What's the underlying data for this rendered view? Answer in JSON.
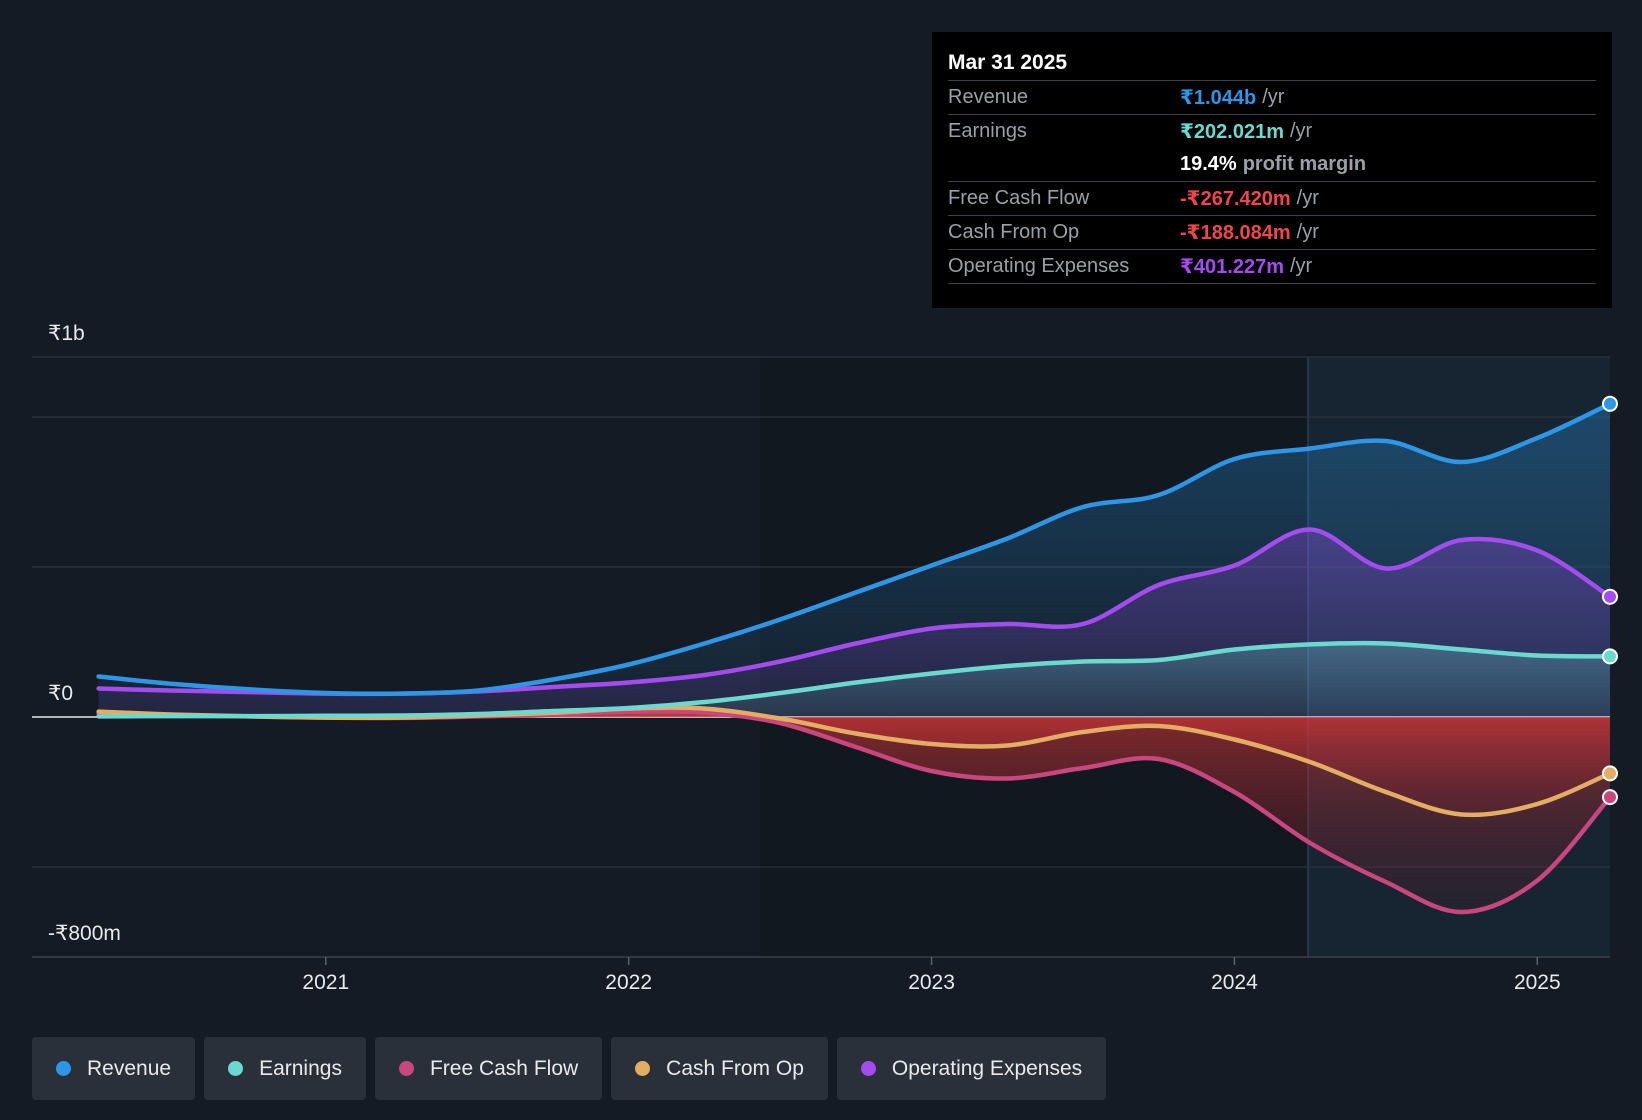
{
  "colors": {
    "revenue": "#2b97e6",
    "earnings": "#6ad9d0",
    "free_cash_flow": "#c9467e",
    "cash_from_op": "#e3ad62",
    "operating_expenses": "#a44cf0",
    "negative": "#f0474d"
  },
  "tooltip": {
    "date": "Mar 31 2025",
    "revenue_label": "Revenue",
    "revenue_value": "₹1.044b",
    "earnings_label": "Earnings",
    "earnings_value": "₹202.021m",
    "margin_pct": "19.4%",
    "margin_text": "profit margin",
    "fcf_label": "Free Cash Flow",
    "fcf_value": "-₹267.420m",
    "cfo_label": "Cash From Op",
    "cfo_value": "-₹188.084m",
    "opex_label": "Operating Expenses",
    "opex_value": "₹401.227m",
    "unit": "/yr"
  },
  "legend": {
    "revenue": "Revenue",
    "earnings": "Earnings",
    "free_cash_flow": "Free Cash Flow",
    "cash_from_op": "Cash From Op",
    "operating_expenses": "Operating Expenses"
  },
  "chart_data": {
    "type": "line",
    "title": "",
    "xlabel": "",
    "ylabel": "",
    "unit": "₹m",
    "ylim": [
      -800,
      1200
    ],
    "y_tick_labels": {
      "top": "₹1b",
      "zero": "₹0",
      "bottom": "-₹800m"
    },
    "x_tick_labels": [
      "2021",
      "2022",
      "2023",
      "2024",
      "2025"
    ],
    "x_tick_values": [
      2021.0,
      2022.0,
      2023.0,
      2024.0,
      2025.0
    ],
    "xlim": [
      2020.03,
      2025.24
    ],
    "highlight_start": 2024.25,
    "series": [
      {
        "key": "operating_expenses",
        "name": "Operating Expenses",
        "x": [
          2020.25,
          2020.5,
          2020.75,
          2021.0,
          2021.25,
          2021.5,
          2021.75,
          2022.0,
          2022.25,
          2022.5,
          2022.75,
          2023.0,
          2023.25,
          2023.5,
          2023.75,
          2024.0,
          2024.25,
          2024.5,
          2024.75,
          2025.0,
          2025.24
        ],
        "y": [
          95,
          88,
          83,
          78,
          78,
          85,
          100,
          115,
          140,
          185,
          245,
          295,
          310,
          310,
          440,
          505,
          625,
          495,
          590,
          555,
          401
        ]
      },
      {
        "key": "revenue",
        "name": "Revenue",
        "x": [
          2020.25,
          2020.5,
          2020.75,
          2021.0,
          2021.25,
          2021.5,
          2021.75,
          2022.0,
          2022.25,
          2022.5,
          2022.75,
          2023.0,
          2023.25,
          2023.5,
          2023.75,
          2024.0,
          2024.25,
          2024.5,
          2024.75,
          2025.0,
          2025.24
        ],
        "y": [
          135,
          110,
          92,
          80,
          78,
          88,
          125,
          175,
          245,
          325,
          415,
          505,
          595,
          700,
          740,
          860,
          895,
          920,
          850,
          930,
          1044
        ]
      },
      {
        "key": "earnings",
        "name": "Earnings",
        "x": [
          2020.25,
          2020.5,
          2020.75,
          2021.0,
          2021.25,
          2021.5,
          2021.75,
          2022.0,
          2022.25,
          2022.5,
          2022.75,
          2023.0,
          2023.25,
          2023.5,
          2023.75,
          2024.0,
          2024.25,
          2024.5,
          2024.75,
          2025.0,
          2025.24
        ],
        "y": [
          2,
          3,
          3,
          4,
          5,
          10,
          20,
          30,
          50,
          80,
          115,
          145,
          170,
          185,
          190,
          225,
          242,
          245,
          225,
          205,
          202
        ]
      },
      {
        "key": "cash_from_op",
        "name": "Cash From Op",
        "x": [
          2020.25,
          2020.5,
          2020.75,
          2021.0,
          2021.25,
          2021.5,
          2021.75,
          2022.0,
          2022.25,
          2022.5,
          2022.75,
          2023.0,
          2023.25,
          2023.5,
          2023.75,
          2024.0,
          2024.25,
          2024.5,
          2024.75,
          2025.0,
          2025.24
        ],
        "y": [
          18,
          8,
          2,
          -2,
          -2,
          5,
          14,
          28,
          28,
          -5,
          -55,
          -90,
          -95,
          -50,
          -30,
          -75,
          -150,
          -250,
          -325,
          -290,
          -188
        ]
      },
      {
        "key": "free_cash_flow",
        "name": "Free Cash Flow",
        "x": [
          2020.25,
          2020.5,
          2020.75,
          2021.0,
          2021.25,
          2021.5,
          2021.75,
          2022.0,
          2022.25,
          2022.5,
          2022.75,
          2023.0,
          2023.25,
          2023.5,
          2023.75,
          2024.0,
          2024.25,
          2024.5,
          2024.75,
          2025.0,
          2025.24
        ],
        "y": [
          12,
          6,
          2,
          -2,
          -3,
          2,
          8,
          18,
          15,
          -20,
          -100,
          -180,
          -205,
          -170,
          -140,
          -250,
          -420,
          -550,
          -650,
          -545,
          -267
        ]
      }
    ]
  }
}
